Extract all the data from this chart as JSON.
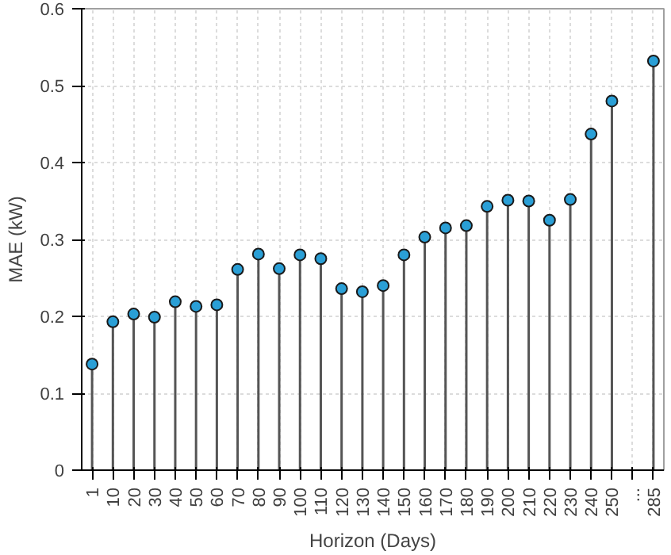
{
  "chart_data": {
    "type": "lollipop",
    "xlabel": "Horizon (Days)",
    "ylabel": "MAE (kW)",
    "categories": [
      "1",
      "10",
      "20",
      "30",
      "40",
      "50",
      "60",
      "70",
      "80",
      "90",
      "100",
      "110",
      "120",
      "130",
      "140",
      "150",
      "160",
      "170",
      "180",
      "190",
      "200",
      "210",
      "220",
      "230",
      "240",
      "250",
      "...",
      "285"
    ],
    "series": [
      {
        "color": "#2a9fd6",
        "values": [
          0.138,
          0.193,
          0.203,
          0.199,
          0.219,
          0.213,
          0.215,
          0.261,
          0.281,
          0.262,
          0.28,
          0.275,
          0.236,
          0.232,
          0.24,
          0.28,
          0.303,
          0.315,
          0.318,
          0.343,
          0.351,
          0.35,
          0.325,
          0.352,
          0.437,
          0.48,
          null,
          0.532
        ]
      }
    ],
    "ylim": [
      0,
      0.6
    ],
    "yticks": [
      0,
      0.1,
      0.2,
      0.3,
      0.4,
      0.5,
      0.6
    ],
    "grid": true,
    "marker": "circle"
  }
}
